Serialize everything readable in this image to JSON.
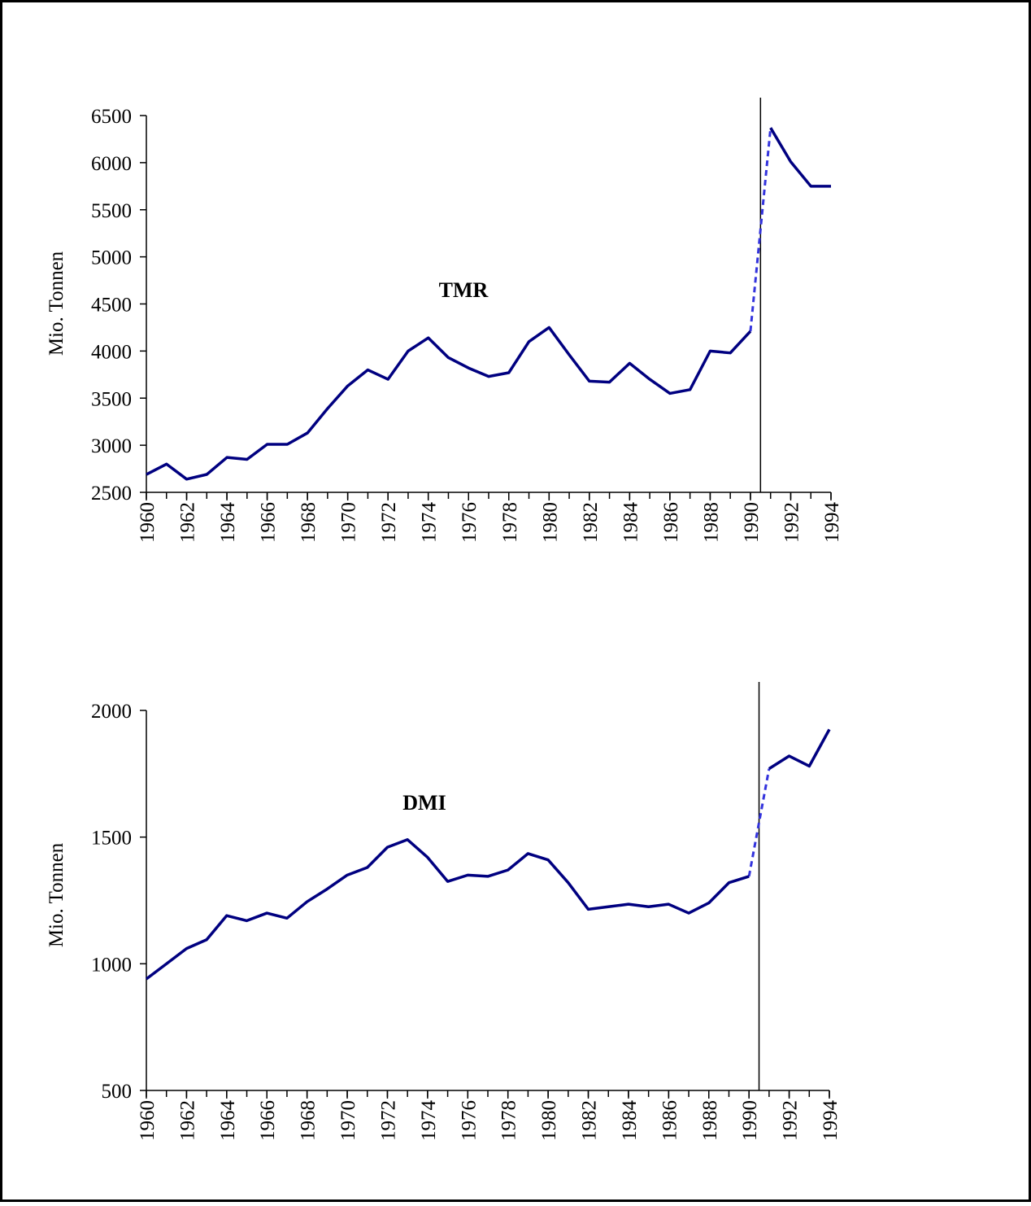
{
  "chart_data": [
    {
      "type": "line",
      "annotation": "TMR",
      "ylabel": "Mio. Tonnen",
      "x": [
        1960,
        1961,
        1962,
        1963,
        1964,
        1965,
        1966,
        1967,
        1968,
        1969,
        1970,
        1971,
        1972,
        1973,
        1974,
        1975,
        1976,
        1977,
        1978,
        1979,
        1980,
        1981,
        1982,
        1983,
        1984,
        1985,
        1986,
        1987,
        1988,
        1989,
        1990,
        1991,
        1992,
        1993,
        1994
      ],
      "xlim": [
        1960,
        1994
      ],
      "xticks": [
        1960,
        1962,
        1964,
        1966,
        1968,
        1970,
        1972,
        1974,
        1976,
        1978,
        1980,
        1982,
        1984,
        1986,
        1988,
        1990,
        1992,
        1994
      ],
      "ylim": [
        2500,
        6500
      ],
      "yticks": [
        2500,
        3000,
        3500,
        4000,
        4500,
        5000,
        5500,
        6000,
        6500
      ],
      "series": [
        {
          "color": "#000080",
          "values": [
            2690,
            2800,
            2640,
            2690,
            2870,
            2850,
            3010,
            3010,
            3130,
            3390,
            3630,
            3800,
            3700,
            4000,
            4140,
            3930,
            3820,
            3730,
            3770,
            4100,
            4250,
            3960,
            3680,
            3670,
            3870,
            3700,
            3550,
            3590,
            4000,
            3980,
            4210,
            6370,
            6010,
            5750,
            5750
          ]
        }
      ],
      "dashed_segment": 30,
      "dashed_color": "#3333dd",
      "marker_x": 1990.5,
      "marker_color": "#000000"
    },
    {
      "type": "line",
      "annotation": "DMI",
      "ylabel": "Mio. Tonnen",
      "x": [
        1960,
        1961,
        1962,
        1963,
        1964,
        1965,
        1966,
        1967,
        1968,
        1969,
        1970,
        1971,
        1972,
        1973,
        1974,
        1975,
        1976,
        1977,
        1978,
        1979,
        1980,
        1981,
        1982,
        1983,
        1984,
        1985,
        1986,
        1987,
        1988,
        1989,
        1990,
        1991,
        1992,
        1993,
        1994
      ],
      "xlim": [
        1960,
        1994
      ],
      "xticks": [
        1960,
        1962,
        1964,
        1966,
        1968,
        1970,
        1972,
        1974,
        1976,
        1978,
        1980,
        1982,
        1984,
        1986,
        1988,
        1990,
        1992,
        1994
      ],
      "ylim": [
        500,
        2000
      ],
      "yticks": [
        500,
        1000,
        1500,
        2000
      ],
      "series": [
        {
          "color": "#000080",
          "values": [
            940,
            1000,
            1060,
            1095,
            1190,
            1170,
            1200,
            1180,
            1245,
            1295,
            1350,
            1380,
            1460,
            1490,
            1420,
            1325,
            1350,
            1345,
            1370,
            1435,
            1410,
            1320,
            1215,
            1225,
            1235,
            1225,
            1235,
            1200,
            1240,
            1320,
            1345,
            1770,
            1820,
            1780,
            1925
          ]
        }
      ],
      "dashed_segment": 30,
      "dashed_color": "#3333dd",
      "marker_x": 1990.5,
      "marker_color": "#000000"
    }
  ]
}
